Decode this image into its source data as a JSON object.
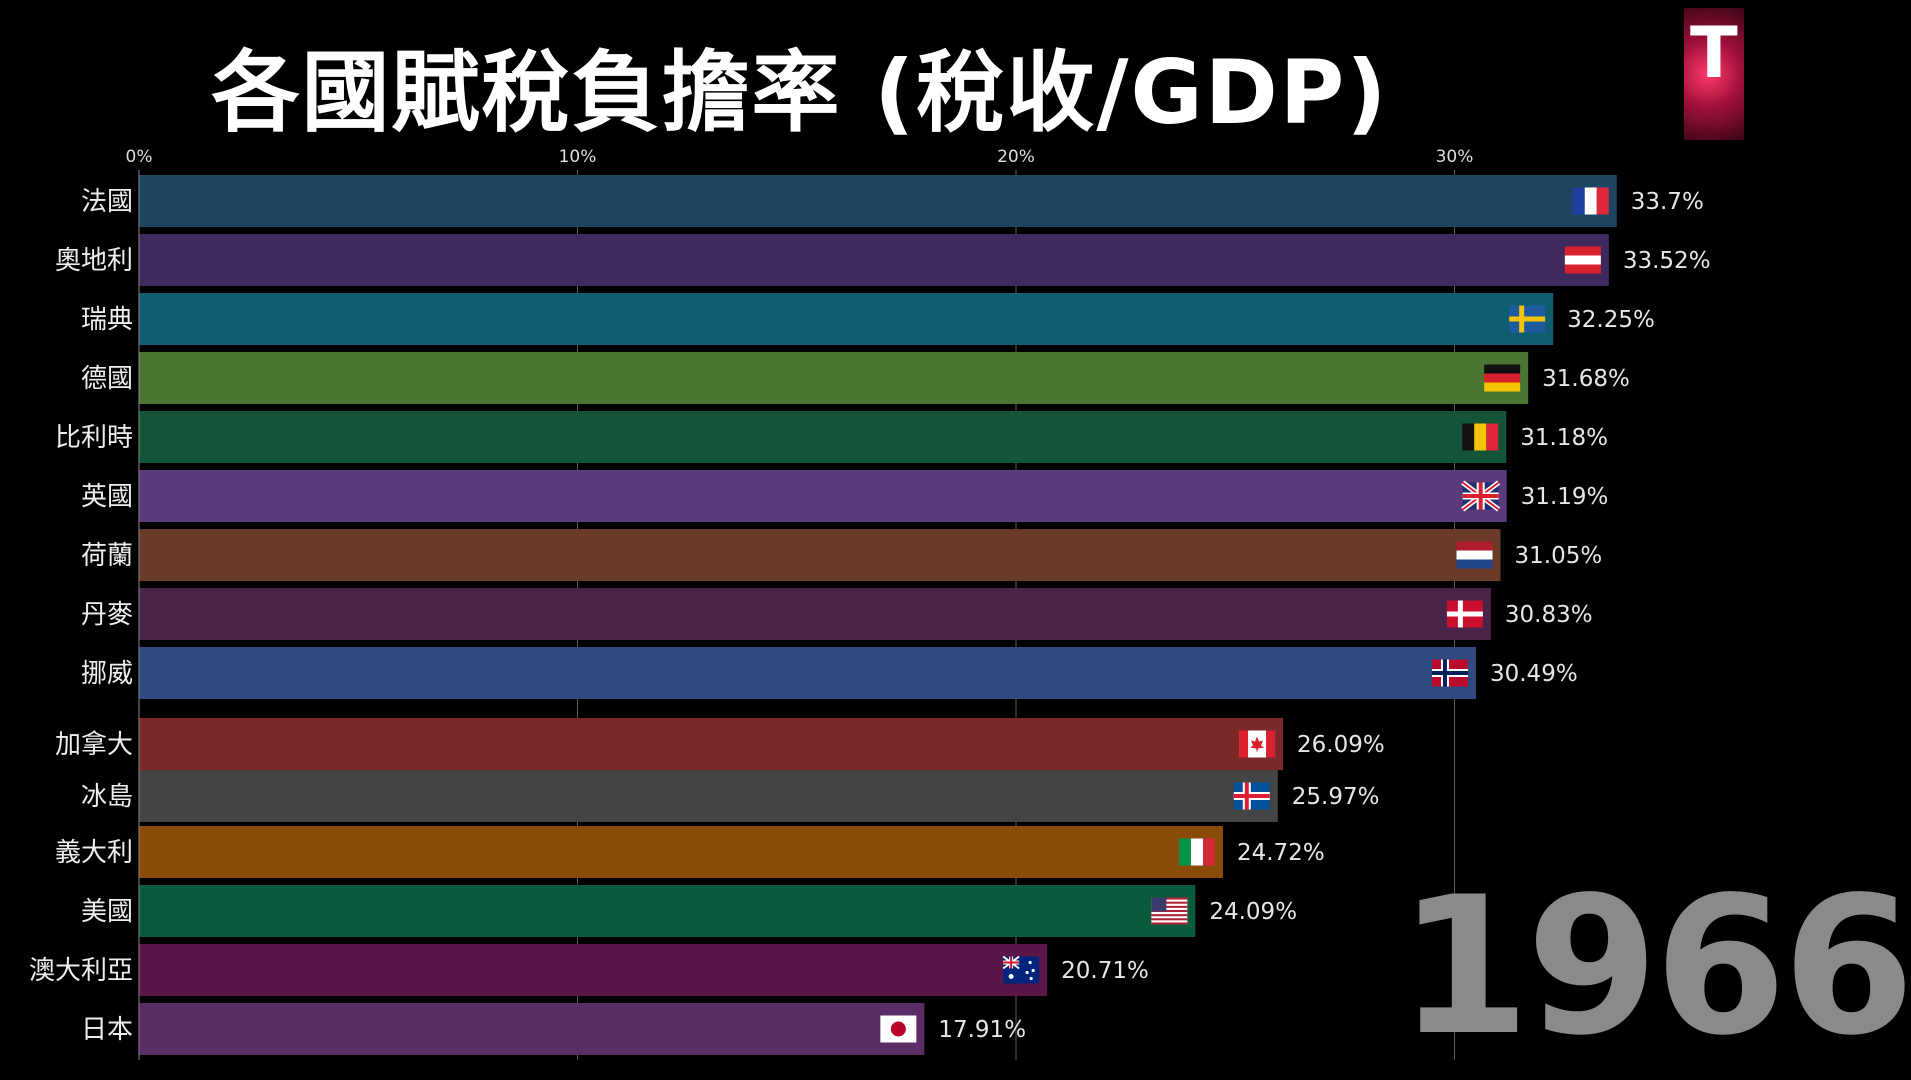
{
  "chart_data": {
    "type": "bar",
    "orientation": "horizontal",
    "title": "各國賦稅負擔率 (稅收/GDP)",
    "xlim": [
      0,
      35
    ],
    "x_ticks": [
      {
        "value": 0,
        "label": "0%"
      },
      {
        "value": 10,
        "label": "10%"
      },
      {
        "value": 20,
        "label": "20%"
      },
      {
        "value": 30,
        "label": "30%"
      }
    ],
    "grid": true,
    "year": "1966",
    "categories": [
      "法國",
      "奧地利",
      "瑞典",
      "德國",
      "比利時",
      "英國",
      "荷蘭",
      "丹麥",
      "挪威",
      "加拿大",
      "冰島",
      "義大利",
      "美國",
      "澳大利亞",
      "日本"
    ],
    "values": [
      33.7,
      33.52,
      32.25,
      31.68,
      31.18,
      31.19,
      31.05,
      30.83,
      30.49,
      26.09,
      25.97,
      24.72,
      24.09,
      20.71,
      17.91
    ],
    "value_labels": [
      "33.7%",
      "33.52%",
      "32.25%",
      "31.68%",
      "31.18%",
      "31.19%",
      "31.05%",
      "30.83%",
      "30.49%",
      "26.09%",
      "25.97%",
      "24.72%",
      "24.09%",
      "20.71%",
      "17.91%"
    ],
    "flags": [
      "france-flag-icon",
      "austria-flag-icon",
      "sweden-flag-icon",
      "germany-flag-icon",
      "belgium-flag-icon",
      "uk-flag-icon",
      "netherlands-flag-icon",
      "denmark-flag-icon",
      "norway-flag-icon",
      "canada-flag-icon",
      "iceland-flag-icon",
      "italy-flag-icon",
      "usa-flag-icon",
      "australia-flag-icon",
      "japan-flag-icon"
    ],
    "colors": [
      "#1d4560",
      "#3f2a60",
      "#0e5e70",
      "#4a7533",
      "#14553a",
      "#5a3a7a",
      "#6a3b28",
      "#4a2448",
      "#2f4a80",
      "#7a2828",
      "#444444",
      "#8a4a08",
      "#0a5a3e",
      "#5a1646",
      "#5c2c66"
    ]
  },
  "logo": {
    "text": "T"
  }
}
